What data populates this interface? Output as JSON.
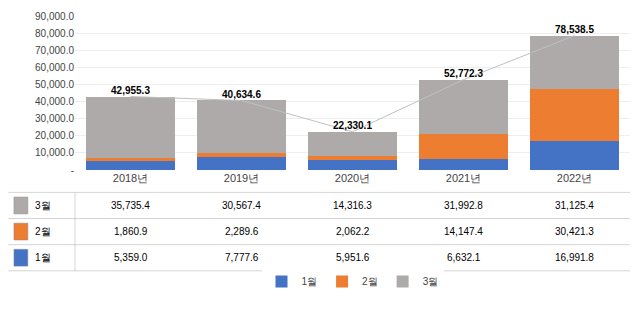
{
  "chart_data": {
    "type": "bar",
    "stacked": true,
    "categories": [
      "2018년",
      "2019년",
      "2020년",
      "2021년",
      "2022년"
    ],
    "series": [
      {
        "name": "1월",
        "color": "#4472C4",
        "values": [
          5359.0,
          7777.6,
          5951.6,
          6632.1,
          16991.8
        ]
      },
      {
        "name": "2월",
        "color": "#ED7D31",
        "values": [
          1860.9,
          2289.6,
          2062.2,
          14147.4,
          30421.3
        ]
      },
      {
        "name": "3월",
        "color": "#AEAAAA",
        "values": [
          35735.4,
          30567.4,
          14316.3,
          31992.8,
          31125.4
        ]
      },
      {
        "type": "line",
        "color": "#C0C0C0",
        "values": [
          42955.3,
          40634.6,
          22330.1,
          52772.3,
          78538.5
        ],
        "data_labels": true,
        "value_labels": [
          "42,955.3",
          "40,634.6",
          "22,330.1",
          "52,772.3",
          "78,538.5"
        ]
      }
    ],
    "ylim": [
      0,
      90000
    ],
    "yticks": [
      {
        "value": 0,
        "label": "-"
      },
      {
        "value": 10000,
        "label": "10,000.0"
      },
      {
        "value": 20000,
        "label": "20,000.0"
      },
      {
        "value": 30000,
        "label": "30,000.0"
      },
      {
        "value": 40000,
        "label": "40,000.0"
      },
      {
        "value": 50000,
        "label": "50,000.0"
      },
      {
        "value": 60000,
        "label": "60,000.0"
      },
      {
        "value": 70000,
        "label": "70,000.0"
      },
      {
        "value": 80000,
        "label": "80,000.0"
      },
      {
        "value": 90000,
        "label": "90,000.0"
      }
    ],
    "grid": true,
    "legend": "bottom",
    "table": {
      "rows": [
        "3월",
        "2월",
        "1월"
      ],
      "colors": [
        "#AEAAAA",
        "#ED7D31",
        "#4472C4"
      ],
      "values": [
        [
          35735.4,
          30567.4,
          14316.3,
          31992.8,
          31125.4
        ],
        [
          1860.9,
          2289.6,
          2062.2,
          14147.4,
          30421.3
        ],
        [
          5359.0,
          7777.6,
          5951.6,
          6632.1,
          16991.8
        ]
      ],
      "value_labels": [
        [
          "35,735.4",
          "30,567.4",
          "14,316.3",
          "31,992.8",
          "31,125.4"
        ],
        [
          "1,860.9",
          "2,289.6",
          "2,062.2",
          "14,147.4",
          "30,421.3"
        ],
        [
          "5,359.0",
          "7,777.6",
          "5,951.6",
          "6,632.1",
          "16,991.8"
        ]
      ]
    }
  }
}
